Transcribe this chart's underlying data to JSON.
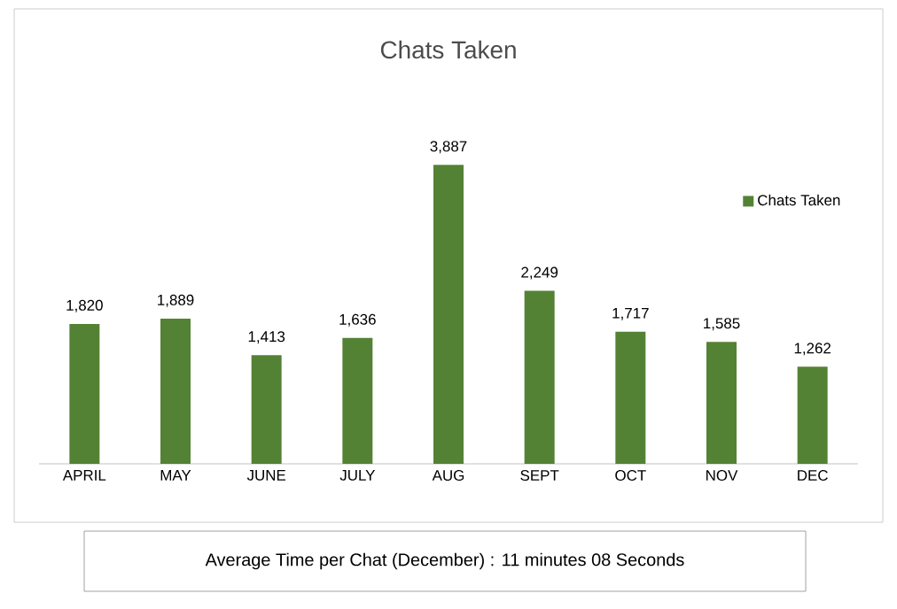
{
  "chart_data": {
    "type": "bar",
    "title": "Chats Taken",
    "categories": [
      "APRIL",
      "MAY",
      "JUNE",
      "JULY",
      "AUG",
      "SEPT",
      "OCT",
      "NOV",
      "DEC"
    ],
    "series": [
      {
        "name": "Chats Taken",
        "color": "#548235",
        "values": [
          1820,
          1889,
          1413,
          1636,
          3887,
          2249,
          1717,
          1585,
          1262
        ],
        "value_labels": [
          "1,820",
          "1,889",
          "1,413",
          "1,636",
          "3,887",
          "2,249",
          "1,717",
          "1,585",
          "1,262"
        ]
      }
    ],
    "legend": "right",
    "annotations": [
      "Average Time per Chat (December) : 11 minutes 08 Seconds"
    ]
  }
}
